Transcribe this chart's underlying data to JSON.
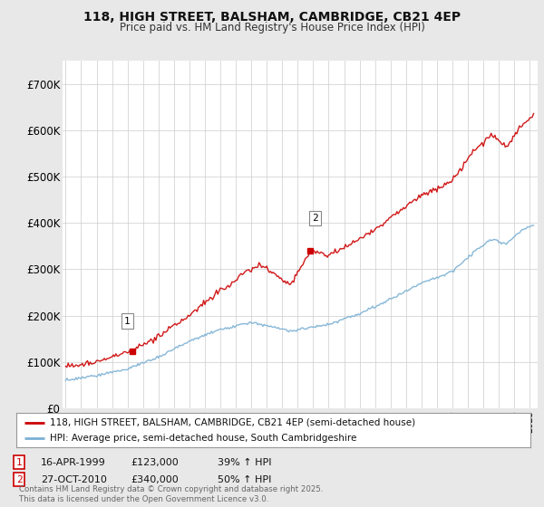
{
  "title_line1": "118, HIGH STREET, BALSHAM, CAMBRIDGE, CB21 4EP",
  "title_line2": "Price paid vs. HM Land Registry's House Price Index (HPI)",
  "bg_color": "#e8e8e8",
  "plot_bg_color": "#ffffff",
  "red_color": "#cc0000",
  "blue_color": "#7ab0d4",
  "sale1_year": 1999.29,
  "sale1_price": 123000,
  "sale1_date": "16-APR-1999",
  "sale1_label": "39% ↑ HPI",
  "sale2_year": 2010.82,
  "sale2_price": 340000,
  "sale2_date": "27-OCT-2010",
  "sale2_label": "50% ↑ HPI",
  "legend_red": "118, HIGH STREET, BALSHAM, CAMBRIDGE, CB21 4EP (semi-detached house)",
  "legend_blue": "HPI: Average price, semi-detached house, South Cambridgeshire",
  "footer": "Contains HM Land Registry data © Crown copyright and database right 2025.\nThis data is licensed under the Open Government Licence v3.0.",
  "ylim": [
    0,
    750000
  ],
  "yticks": [
    0,
    100000,
    200000,
    300000,
    400000,
    500000,
    600000,
    700000
  ],
  "ytick_labels": [
    "£0",
    "£100K",
    "£200K",
    "£300K",
    "£400K",
    "£500K",
    "£600K",
    "£700K"
  ],
  "xstart": 1994.8,
  "xend": 2025.5
}
